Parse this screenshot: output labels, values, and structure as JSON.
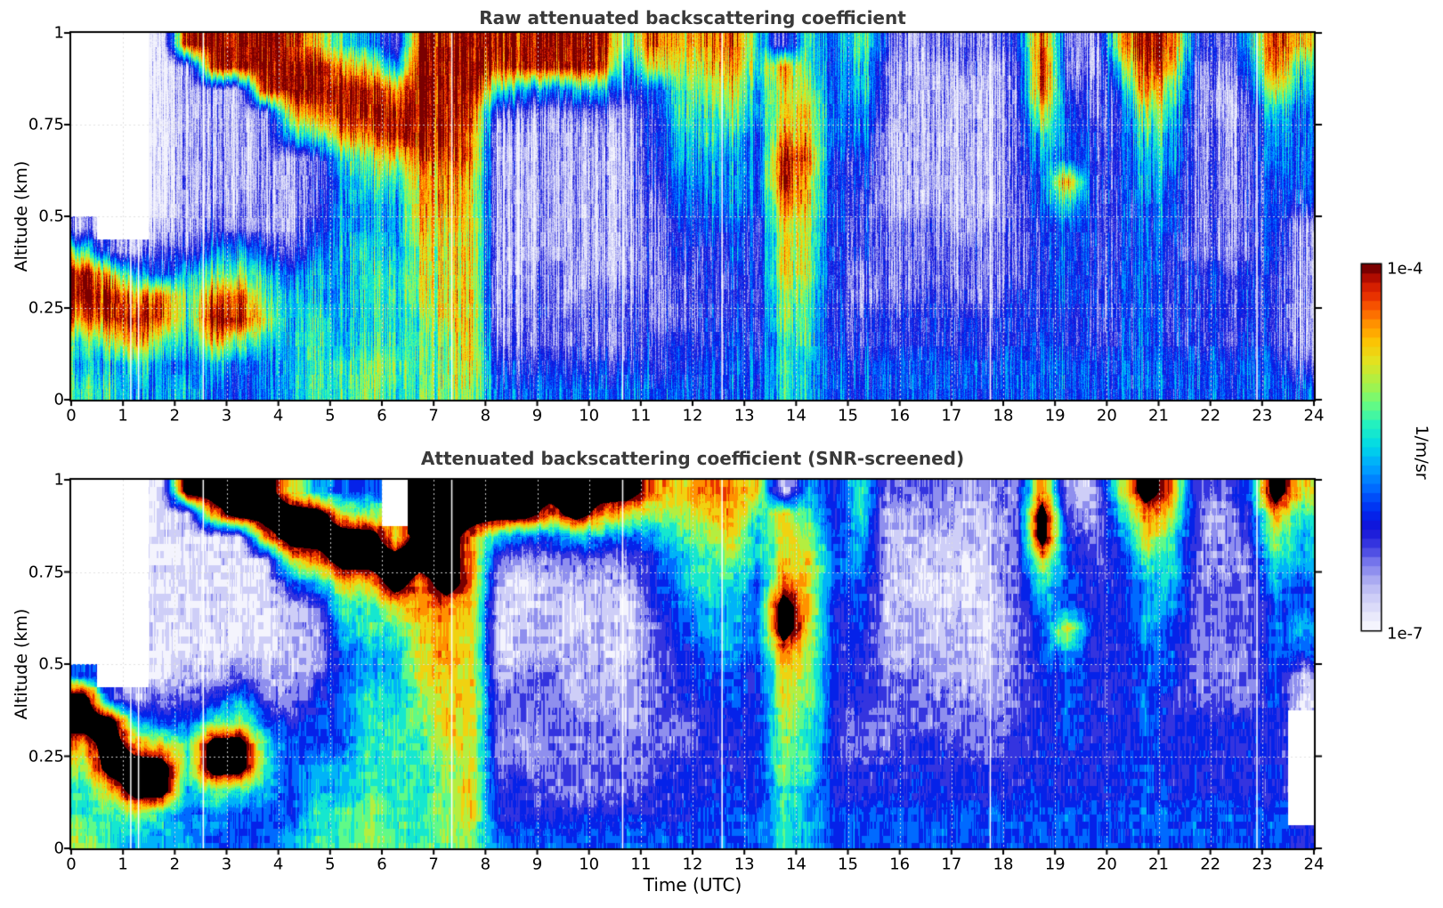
{
  "figure": {
    "background": "#ffffff",
    "title_color": "#3a3a3a",
    "axis_color": "#000000",
    "x_tick_labels": [
      "0",
      "1",
      "2",
      "3",
      "4",
      "5",
      "6",
      "7",
      "8",
      "9",
      "10",
      "11",
      "12",
      "13",
      "14",
      "15",
      "16",
      "17",
      "18",
      "19",
      "20",
      "21",
      "22",
      "23",
      "24"
    ],
    "y_tick_labels": [
      "1",
      "0.75",
      "0.5",
      "0.25",
      "0"
    ],
    "colorbar": {
      "max_label": "1e-4",
      "min_label": "1e-7",
      "unit_label": "1/m/sr"
    },
    "colormap_stops": [
      [
        0.0,
        "#f4f4fd"
      ],
      [
        0.05,
        "#dcdcf9"
      ],
      [
        0.1,
        "#c0c0f4"
      ],
      [
        0.14,
        "#9e9ef0"
      ],
      [
        0.18,
        "#7070ea"
      ],
      [
        0.22,
        "#3a3ae0"
      ],
      [
        0.27,
        "#1212d8"
      ],
      [
        0.32,
        "#0028f0"
      ],
      [
        0.38,
        "#0066ff"
      ],
      [
        0.44,
        "#00a2ff"
      ],
      [
        0.5,
        "#00d8e8"
      ],
      [
        0.56,
        "#22f0c0"
      ],
      [
        0.62,
        "#6afc7e"
      ],
      [
        0.68,
        "#aaf046"
      ],
      [
        0.74,
        "#e2e220"
      ],
      [
        0.8,
        "#ffc000"
      ],
      [
        0.86,
        "#ff7e00"
      ],
      [
        0.91,
        "#f23c00"
      ],
      [
        0.96,
        "#c81200"
      ],
      [
        1.0,
        "#7a0000"
      ]
    ]
  },
  "chart_data": [
    {
      "type": "heatmap",
      "title": "Raw attenuated backscattering coefficient",
      "xlabel": "Time (UTC)",
      "ylabel": "Altitude (km)",
      "xlim": [
        0,
        24
      ],
      "ylim": [
        0,
        1
      ],
      "xticks": [
        0,
        1,
        2,
        3,
        4,
        5,
        6,
        7,
        8,
        9,
        10,
        11,
        12,
        13,
        14,
        15,
        16,
        17,
        18,
        19,
        20,
        21,
        22,
        23,
        24
      ],
      "yticks": [
        0,
        0.25,
        0.5,
        0.75,
        1
      ],
      "grid_on": true,
      "colorbar": {
        "min": "1e-7",
        "max": "1e-4",
        "units": "1/m/sr",
        "scale": "log10"
      },
      "gap_line_hours": [
        1.15,
        1.3,
        2.55,
        7.35,
        10.65,
        12.57,
        17.75,
        22.9
      ],
      "value_encoding": {
        "description": "Each char is log-scaled backscatter normalized 0..1 between 1e-7 and 1e-4 1/m/sr; '.'=no data (white); 'K'=saturated (black)",
        "levels": {
          ".": null,
          "0": 0.04,
          "1": 0.1,
          "2": 0.18,
          "3": 0.27,
          "4": 0.35,
          "5": 0.46,
          "6": 0.56,
          "7": 0.66,
          "8": 0.76,
          "9": 0.86,
          "A": 0.94,
          "B": 1.0,
          "K": 1.2
        }
      },
      "grid": {
        "cols": 48,
        "rows": 16,
        "col_duration_hours": 0.5,
        "row_height_km": 0.0625,
        "order": "columns left-to-right (0h to 24h); chars top (1 km) to bottom (0 km)",
        "columns": [
          "........16BB9656",
          ".........28BA756",
          ".........159B965",
          "00000000134AA755",
          "B111111112566545",
          "BA1111112469B854",
          "BB111111257AB744",
          "BBA1111113567544",
          "ABB8511112455555",
          "8BB9622234556666",
          "69BB965555555566",
          "58BB976556666677",
          "259BB86555666676",
          "BBBBA98887776666",
          "BBBBBA9988888777",
          "BBBA998888888887",
          "BA62111111111234",
          "BB52111111122234",
          "BA41111111222234",
          "BB52111111112234",
          "BA52111111122234",
          "6431111111122234",
          "A843333222222334",
          "8766554433222334",
          "9876655443333344",
          "A987655544333444",
          "6655444433333344",
          "29889BB988877666",
          "6678898877766655",
          "4444433333333344",
          "7665544333223344",
          "3222111122223344",
          "1111111122223344",
          "2111111122233344",
          "2211111112223344",
          "2111111122223344",
          "3222222222233344",
          "ABA8654433333444",
          "2234449644443344",
          "1122333333333344",
          "8643333333333344",
          "BA97655444444444",
          "A976554443333344",
          "3222222222333344",
          "2211222222333344",
          "5432222222333344",
          "BA86554444333344",
          "8654444311111124"
        ]
      }
    },
    {
      "type": "heatmap",
      "title": "Attenuated backscattering coefficient (SNR-screened)",
      "xlabel": "Time (UTC)",
      "ylabel": "Altitude (km)",
      "xlim": [
        0,
        24
      ],
      "ylim": [
        0,
        1
      ],
      "xticks": [
        0,
        1,
        2,
        3,
        4,
        5,
        6,
        7,
        8,
        9,
        10,
        11,
        12,
        13,
        14,
        15,
        16,
        17,
        18,
        19,
        20,
        21,
        22,
        23,
        24
      ],
      "yticks": [
        0,
        0.25,
        0.5,
        0.75,
        1
      ],
      "grid_on": true,
      "colorbar": {
        "min": "1e-7",
        "max": "1e-4",
        "units": "1/m/sr",
        "scale": "log10"
      },
      "gap_line_hours": [
        1.15,
        1.3,
        2.55,
        7.35,
        10.65,
        12.57,
        17.75,
        22.9
      ],
      "value_encoding": {
        "description": "Each char is log-scaled backscatter normalized 0..1 between 1e-7 and 1e-4 1/m/sr; '.'=no data (white); 'K'=saturated (black)",
        "levels": {
          ".": null,
          "0": 0.04,
          "1": 0.1,
          "2": 0.18,
          "3": 0.27,
          "4": 0.35,
          "5": 0.46,
          "6": 0.56,
          "7": 0.66,
          "8": 0.76,
          "9": 0.86,
          "A": 0.94,
          "B": 1.0,
          "K": 1.2
        }
      },
      "grid": {
        "cols": 48,
        "rows": 16,
        "col_duration_hours": 0.5,
        "row_height_km": 0.0625,
        "order": "columns left-to-right (0h to 24h); chars top (1 km) to bottom (0 km)",
        "columns": [
          "........4KK97667",
          ".........3KKK866",
          ".........159KK75",
          "000000000248KK65",
          "K000000012466545",
          "K9000000136KK754",
          "KK000000257KK644",
          "KK90000012466544",
          "8KK8411112344445",
          "5KK9521123445566",
          "48KK865444445566",
          "47KK866556666677",
          "..8KK86555666666",
          "KKKK998887766666",
          "KKKKK99988887777",
          "KK99988888888887",
          "KK52110012222334",
          "KK41001122212334",
          "K942111122222234",
          "KK52100111222234",
          "K952111111222234",
          "K842100011122234",
          "9753332222222334",
          "8765544333223334",
          "9876655443333344",
          "9987655544333444",
          "8655444433333344",
          "08889KK988777666",
          "5678888777666555",
          "3344433333333344",
          "6655444333223344",
          "2111111122223344",
          "2110011122233344",
          "2211001112233344",
          "1110001112223344",
          "2111100111223344",
          "2222222222233344",
          "9KK8654433333444",
          "1234448544443344",
          "1122333333333344",
          "7543333333333344",
          "K986555444444444",
          "9866554443333344",
          "2222222222333344",
          "2111222222333344",
          "4332222222333344",
          "K976544444333344",
          "8655445410.....3"
        ]
      }
    }
  ]
}
